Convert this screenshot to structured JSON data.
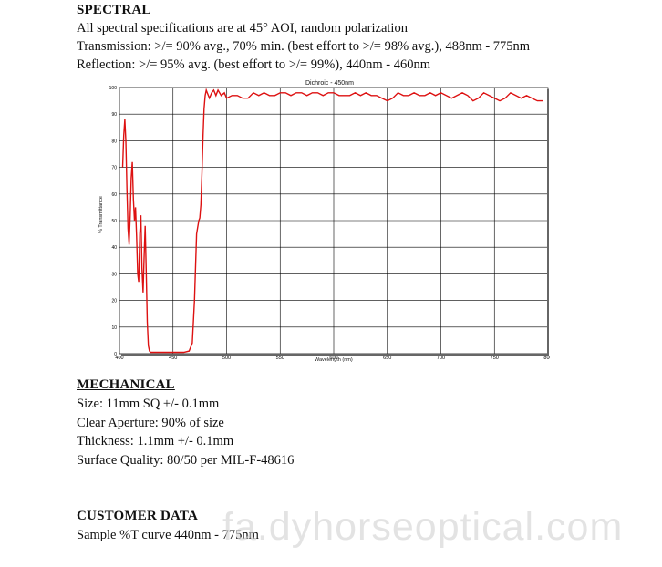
{
  "spectral": {
    "heading": "SPECTRAL",
    "line1": "All spectral specifications are at 45° AOI, random polarization",
    "line2": "Transmission: >/= 90% avg., 70% min. (best effort to >/= 98% avg.), 488nm - 775nm",
    "line3": "Reflection:  >/= 95% avg. (best effort to >/= 99%), 440nm - 460nm"
  },
  "mechanical": {
    "heading": "MECHANICAL",
    "line1": "Size: 11mm SQ +/- 0.1mm",
    "line2": "Clear Aperture:  90% of size",
    "line3": "Thickness: 1.1mm +/- 0.1mm",
    "line4": "Surface Quality: 80/50 per MIL-F-48616"
  },
  "customer": {
    "heading": "CUSTOMER DATA",
    "line1": "Sample %T curve 440nm - 775nm"
  },
  "watermark": "fa.dyhorseoptical.com",
  "chart_data": {
    "type": "line",
    "title": "Dichroic - 450nm",
    "xlabel": "Wavelength (nm)",
    "ylabel": "% Transmittance",
    "xlim": [
      400,
      800
    ],
    "ylim": [
      0,
      100
    ],
    "xticks": [
      400,
      450,
      500,
      550,
      600,
      650,
      700,
      750,
      800
    ],
    "yticks": [
      0,
      10,
      20,
      30,
      40,
      50,
      60,
      70,
      80,
      90,
      100
    ],
    "grid": true,
    "series": [
      {
        "color": "#dd1111",
        "x": [
          403,
          404,
          405,
          406,
          407,
          408,
          409,
          410,
          411,
          412,
          413,
          414,
          415,
          416,
          417,
          418,
          419,
          420,
          421,
          422,
          423,
          424,
          425,
          426,
          427,
          428,
          429,
          430,
          431,
          432,
          435,
          440,
          445,
          450,
          455,
          460,
          465,
          468,
          470,
          472,
          474,
          475,
          476,
          477,
          478,
          479,
          480,
          481,
          482,
          484,
          486,
          488,
          490,
          492,
          495,
          498,
          500,
          505,
          510,
          515,
          520,
          525,
          530,
          535,
          540,
          545,
          550,
          555,
          560,
          565,
          570,
          575,
          580,
          585,
          590,
          595,
          600,
          605,
          610,
          615,
          620,
          625,
          630,
          635,
          640,
          645,
          650,
          655,
          660,
          665,
          670,
          675,
          680,
          685,
          690,
          695,
          700,
          705,
          710,
          715,
          720,
          725,
          730,
          735,
          740,
          745,
          750,
          755,
          760,
          765,
          770,
          775,
          780,
          785,
          790,
          795
        ],
        "y": [
          70,
          82,
          88,
          80,
          62,
          47,
          41,
          52,
          66,
          72,
          58,
          50,
          55,
          44,
          30,
          27,
          45,
          52,
          32,
          23,
          36,
          48,
          30,
          12,
          3,
          1,
          0.5,
          0.5,
          0.5,
          0.5,
          0.5,
          0.5,
          0.5,
          0.5,
          0.5,
          0.5,
          1,
          4,
          20,
          45,
          50,
          51,
          56,
          68,
          82,
          92,
          97,
          99,
          98,
          96,
          98,
          99,
          97,
          99,
          97,
          98,
          96,
          97,
          97,
          96,
          96,
          98,
          97,
          98,
          97,
          97,
          98,
          98,
          97,
          98,
          98,
          97,
          98,
          98,
          97,
          98,
          98,
          97,
          97,
          97,
          98,
          97,
          98,
          97,
          97,
          96,
          95,
          96,
          98,
          97,
          97,
          98,
          97,
          97,
          98,
          97,
          98,
          97,
          96,
          97,
          98,
          97,
          95,
          96,
          98,
          97,
          96,
          95,
          96,
          98,
          97,
          96,
          97,
          96,
          95,
          95
        ]
      }
    ]
  }
}
